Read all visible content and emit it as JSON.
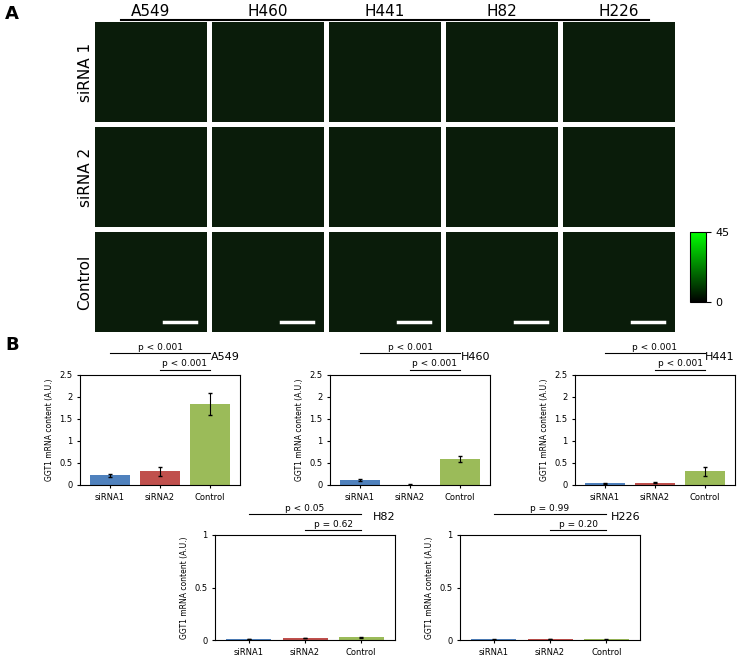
{
  "figure": {
    "panel_labels": [
      "A",
      "B"
    ],
    "images": {
      "columns": [
        "A549",
        "H460",
        "H441",
        "H82",
        "H226"
      ],
      "rows": [
        "siRNA 1",
        "siRNA 2",
        "Control"
      ],
      "colorbar": {
        "range": [
          0,
          45
        ],
        "ticks": [
          0,
          45
        ]
      }
    }
  },
  "chart_data": [
    {
      "type": "bar",
      "title": "A549",
      "ylabel": "GGT1 mRNA content (A.U.)",
      "categories": [
        "siRNA1",
        "siRNA2",
        "Control"
      ],
      "values": [
        0.22,
        0.31,
        1.83
      ],
      "errors": [
        0.03,
        0.1,
        0.25
      ],
      "colors": [
        "#4f81bd",
        "#c0504d",
        "#9bbb59"
      ],
      "ylim": [
        0,
        2.5
      ],
      "yticks": [
        0,
        0.5,
        1,
        1.5,
        2,
        2.5
      ],
      "annotations": [
        {
          "from": "siRNA1",
          "to": "Control",
          "label": "p < 0.001"
        },
        {
          "from": "siRNA2",
          "to": "Control",
          "label": "p < 0.001"
        }
      ]
    },
    {
      "type": "bar",
      "title": "H460",
      "ylabel": "GGT1 mRNA content (A.U.)",
      "categories": [
        "siRNA1",
        "siRNA2",
        "Control"
      ],
      "values": [
        0.11,
        0.01,
        0.59
      ],
      "errors": [
        0.02,
        0.005,
        0.07
      ],
      "colors": [
        "#4f81bd",
        "#c0504d",
        "#9bbb59"
      ],
      "ylim": [
        0,
        2.5
      ],
      "yticks": [
        0,
        0.5,
        1,
        1.5,
        2,
        2.5
      ],
      "annotations": [
        {
          "from": "siRNA1",
          "to": "Control",
          "label": "p < 0.001"
        },
        {
          "from": "siRNA2",
          "to": "Control",
          "label": "p < 0.001"
        }
      ]
    },
    {
      "type": "bar",
      "title": "H441",
      "ylabel": "GGT1 mRNA content (A.U.)",
      "categories": [
        "siRNA1",
        "siRNA2",
        "Control"
      ],
      "values": [
        0.04,
        0.05,
        0.31
      ],
      "errors": [
        0.01,
        0.01,
        0.1
      ],
      "colors": [
        "#4f81bd",
        "#c0504d",
        "#9bbb59"
      ],
      "ylim": [
        0,
        2.5
      ],
      "yticks": [
        0,
        0.5,
        1,
        1.5,
        2,
        2.5
      ],
      "annotations": [
        {
          "from": "siRNA1",
          "to": "Control",
          "label": "p < 0.001"
        },
        {
          "from": "siRNA2",
          "to": "Control",
          "label": "p < 0.001"
        }
      ]
    },
    {
      "type": "bar",
      "title": "H82",
      "ylabel": "GGT1 mRNA content (A.U.)",
      "categories": [
        "siRNA1",
        "siRNA2",
        "Control"
      ],
      "values": [
        0.012,
        0.02,
        0.025
      ],
      "errors": [
        0.002,
        0.003,
        0.004
      ],
      "colors": [
        "#4f81bd",
        "#c0504d",
        "#9bbb59"
      ],
      "ylim": [
        0,
        1
      ],
      "yticks": [
        0,
        0.5,
        1
      ],
      "annotations": [
        {
          "from": "siRNA1",
          "to": "Control",
          "label": "p < 0.05"
        },
        {
          "from": "siRNA2",
          "to": "Control",
          "label": "p = 0.62"
        }
      ]
    },
    {
      "type": "bar",
      "title": "H226",
      "ylabel": "GGT1 mRNA content (A.U.)",
      "categories": [
        "siRNA1",
        "siRNA2",
        "Control"
      ],
      "values": [
        0.005,
        0.006,
        0.005
      ],
      "errors": [
        0.001,
        0.001,
        0.001
      ],
      "colors": [
        "#4f81bd",
        "#c0504d",
        "#9bbb59"
      ],
      "ylim": [
        0,
        1
      ],
      "yticks": [
        0,
        0.5,
        1
      ],
      "annotations": [
        {
          "from": "siRNA1",
          "to": "Control",
          "label": "p = 0.99"
        },
        {
          "from": "siRNA2",
          "to": "Control",
          "label": "p = 0.20"
        }
      ]
    }
  ]
}
